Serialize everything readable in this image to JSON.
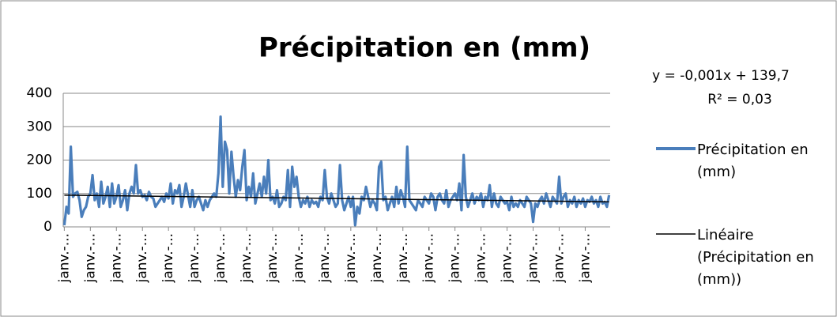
{
  "chart_data": {
    "type": "line",
    "title": "Précipitation en (mm)",
    "annotations": [
      "y = -0,001x + 139,7",
      "R² = 0,03"
    ],
    "categories": [
      "janv.-...",
      null,
      null,
      null,
      null,
      null,
      null,
      null,
      null,
      null,
      null,
      null,
      "janv.-...",
      null,
      null,
      null,
      null,
      null,
      null,
      null,
      null,
      null,
      null,
      null,
      "janv.-...",
      null,
      null,
      null,
      null,
      null,
      null,
      null,
      null,
      null,
      null,
      null,
      "janv.-...",
      null,
      null,
      null,
      null,
      null,
      null,
      null,
      null,
      null,
      null,
      null,
      "janv.-...",
      null,
      null,
      null,
      null,
      null,
      null,
      null,
      null,
      null,
      null,
      null,
      "janv.-...",
      null,
      null,
      null,
      null,
      null,
      null,
      null,
      null,
      null,
      null,
      null,
      "janv.-...",
      null,
      null,
      null,
      null,
      null,
      null,
      null,
      null,
      null,
      null,
      null,
      "janv.-...",
      null,
      null,
      null,
      null,
      null,
      null,
      null,
      null,
      null,
      null,
      null,
      "janv.-...",
      null,
      null,
      null,
      null,
      null,
      null,
      null,
      null,
      null,
      null,
      null,
      "janv.-...",
      null,
      null,
      null,
      null,
      null,
      null,
      null,
      null,
      null,
      null,
      null,
      "janv.-...",
      null,
      null,
      null,
      null,
      null,
      null,
      null,
      null,
      null,
      null,
      null,
      "janv.-...",
      null,
      null,
      null,
      null,
      null,
      null,
      null,
      null,
      null,
      null,
      null,
      "janv.-...",
      null,
      null,
      null,
      null,
      null,
      null,
      null,
      null,
      null,
      null,
      null,
      "janv.-...",
      null,
      null,
      null,
      null,
      null,
      null,
      null,
      null,
      null,
      null,
      null,
      "janv.-...",
      null,
      null,
      null,
      null,
      null,
      null,
      null,
      null,
      null,
      null,
      null,
      "janv.-...",
      null,
      null,
      null,
      null,
      null,
      null,
      null,
      null,
      null,
      null,
      null,
      "janv.-...",
      null,
      null,
      null,
      null,
      null,
      null,
      null,
      null,
      null,
      null,
      null,
      "janv.-...",
      null,
      null,
      null,
      null,
      null,
      null,
      null,
      null,
      null,
      null,
      null,
      "janv.-...",
      null,
      null,
      null,
      null,
      null,
      null,
      null,
      null,
      null,
      null,
      null,
      "janv.-...",
      null,
      null,
      null,
      null,
      null,
      null,
      null,
      null,
      null,
      null,
      null,
      "janv.-...",
      null,
      null,
      null,
      null,
      null,
      null,
      null,
      null,
      null,
      null,
      null
    ],
    "series": [
      {
        "name": "Précipitation en (mm)",
        "color": "#4a7ebb",
        "values": [
          5,
          60,
          40,
          240,
          90,
          100,
          105,
          80,
          30,
          50,
          60,
          90,
          100,
          155,
          80,
          100,
          60,
          135,
          70,
          90,
          120,
          60,
          130,
          70,
          90,
          125,
          60,
          80,
          110,
          50,
          100,
          120,
          100,
          185,
          100,
          110,
          90,
          95,
          80,
          105,
          90,
          85,
          60,
          70,
          80,
          90,
          75,
          100,
          85,
          130,
          70,
          110,
          100,
          125,
          60,
          90,
          130,
          95,
          60,
          110,
          60,
          80,
          90,
          70,
          50,
          80,
          60,
          80,
          90,
          100,
          90,
          160,
          330,
          120,
          255,
          230,
          100,
          225,
          150,
          90,
          140,
          110,
          180,
          230,
          80,
          120,
          90,
          160,
          70,
          100,
          130,
          90,
          150,
          100,
          200,
          80,
          90,
          70,
          110,
          60,
          70,
          90,
          80,
          170,
          60,
          180,
          120,
          150,
          90,
          60,
          80,
          70,
          90,
          60,
          80,
          70,
          75,
          60,
          90,
          80,
          170,
          90,
          70,
          100,
          80,
          60,
          70,
          185,
          80,
          50,
          70,
          90,
          60,
          90,
          5,
          60,
          40,
          90,
          80,
          120,
          90,
          60,
          80,
          70,
          50,
          180,
          195,
          80,
          90,
          50,
          70,
          90,
          60,
          120,
          70,
          110,
          90,
          60,
          240,
          80,
          70,
          60,
          50,
          80,
          70,
          60,
          90,
          80,
          70,
          100,
          90,
          50,
          90,
          100,
          80,
          70,
          110,
          60,
          80,
          90,
          100,
          80,
          130,
          50,
          215,
          90,
          60,
          80,
          100,
          70,
          90,
          80,
          100,
          60,
          90,
          80,
          125,
          60,
          100,
          70,
          60,
          90,
          80,
          70,
          75,
          50,
          90,
          60,
          70,
          60,
          80,
          70,
          60,
          90,
          80,
          70,
          15,
          70,
          60,
          80,
          90,
          70,
          100,
          80,
          60,
          90,
          80,
          70,
          150,
          70,
          90,
          100,
          60,
          80,
          70,
          90,
          60,
          80,
          70,
          85,
          60,
          80,
          75,
          90,
          70,
          80,
          60,
          90,
          70,
          75,
          60,
          95
        ]
      }
    ],
    "trendline": {
      "name": "Linéaire (Précipitation en (mm))",
      "color": "#000000",
      "start": 95,
      "end": 75
    },
    "ylim": [
      0,
      400
    ],
    "yticks": [
      0,
      100,
      200,
      300,
      400
    ],
    "grid": true
  }
}
